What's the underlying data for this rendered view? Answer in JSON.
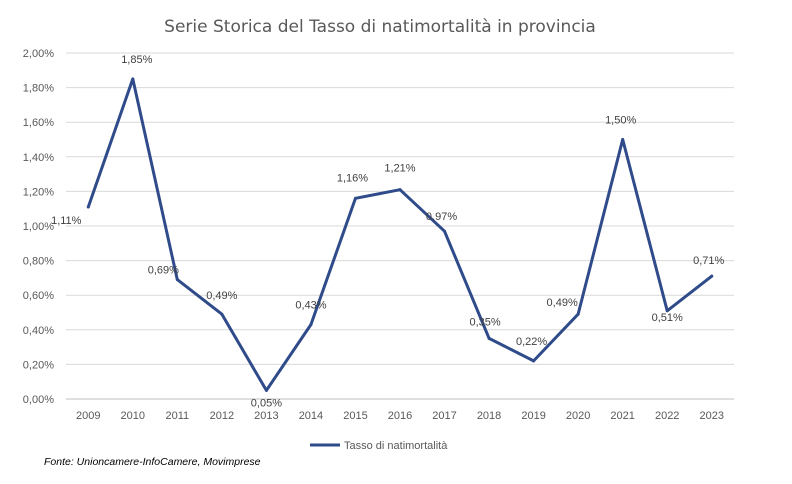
{
  "chart_data": {
    "type": "line",
    "title": "Serie Storica del Tasso di natimortalità in provincia",
    "xlabel": "",
    "ylabel": "",
    "ylim": [
      0,
      2.0
    ],
    "yticks": [
      "0,00%",
      "0,20%",
      "0,40%",
      "0,60%",
      "0,80%",
      "1,00%",
      "1,20%",
      "1,40%",
      "1,60%",
      "1,80%",
      "2,00%"
    ],
    "categories": [
      "2009",
      "2010",
      "2011",
      "2012",
      "2013",
      "2014",
      "2015",
      "2016",
      "2017",
      "2018",
      "2019",
      "2020",
      "2021",
      "2022",
      "2023"
    ],
    "series": [
      {
        "name": "Tasso di natimortalità",
        "color": "#2F4B8A",
        "values": [
          1.11,
          1.85,
          0.69,
          0.49,
          0.05,
          0.43,
          1.16,
          1.21,
          0.97,
          0.35,
          0.22,
          0.49,
          1.5,
          0.51,
          0.71
        ],
        "labels": [
          "1,11%",
          "1,85%",
          "0,69%",
          "0,49%",
          "0,05%",
          "0,43%",
          "1,16%",
          "1,21%",
          "0,97%",
          "0,35%",
          "0,22%",
          "0,49%",
          "1,50%",
          "0,51%",
          "0,71%"
        ]
      }
    ],
    "grid": true,
    "legend_position": "bottom"
  },
  "source": "Fonte: Unioncamere-InfoCamere, Movimprese"
}
